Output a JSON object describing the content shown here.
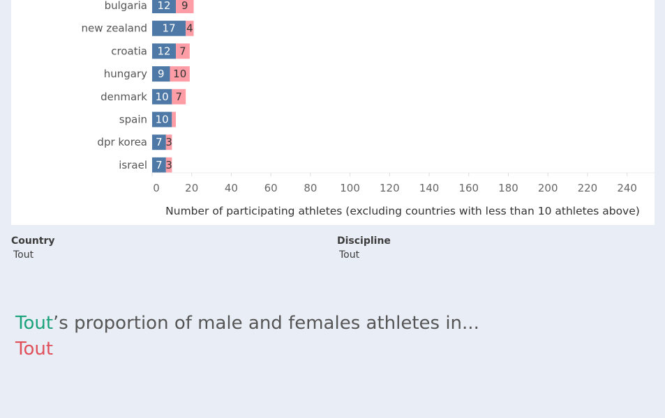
{
  "chart_data": {
    "type": "bar",
    "orientation": "horizontal",
    "stacked": true,
    "categories": [
      "bulgaria",
      "new zealand",
      "croatia",
      "hungary",
      "denmark",
      "spain",
      "dpr korea",
      "israel"
    ],
    "series": [
      {
        "values": [
          12,
          17,
          12,
          9,
          10,
          10,
          7,
          7
        ],
        "color": "#4e79a7"
      },
      {
        "values": [
          9,
          4,
          7,
          10,
          7,
          2,
          3,
          3
        ],
        "color": "#ff9da7"
      }
    ],
    "xlabel": "Number of participating athletes (excluding countries with less than 10 athletes above)",
    "ticks": [
      "0",
      "20",
      "40",
      "60",
      "80",
      "100",
      "120",
      "140",
      "160",
      "180",
      "200",
      "220",
      "240"
    ],
    "xlim": [
      0,
      250
    ]
  },
  "filters": {
    "country": {
      "label": "Country",
      "value": "Tout"
    },
    "discipline": {
      "label": "Discipline",
      "value": "Tout"
    }
  },
  "headline": {
    "country_value": "Tout",
    "text": "’s proportion of male and females athletes in...",
    "discipline_value": "Tout"
  },
  "colors": {
    "green": "#1aa37a",
    "red": "#e0505a"
  }
}
